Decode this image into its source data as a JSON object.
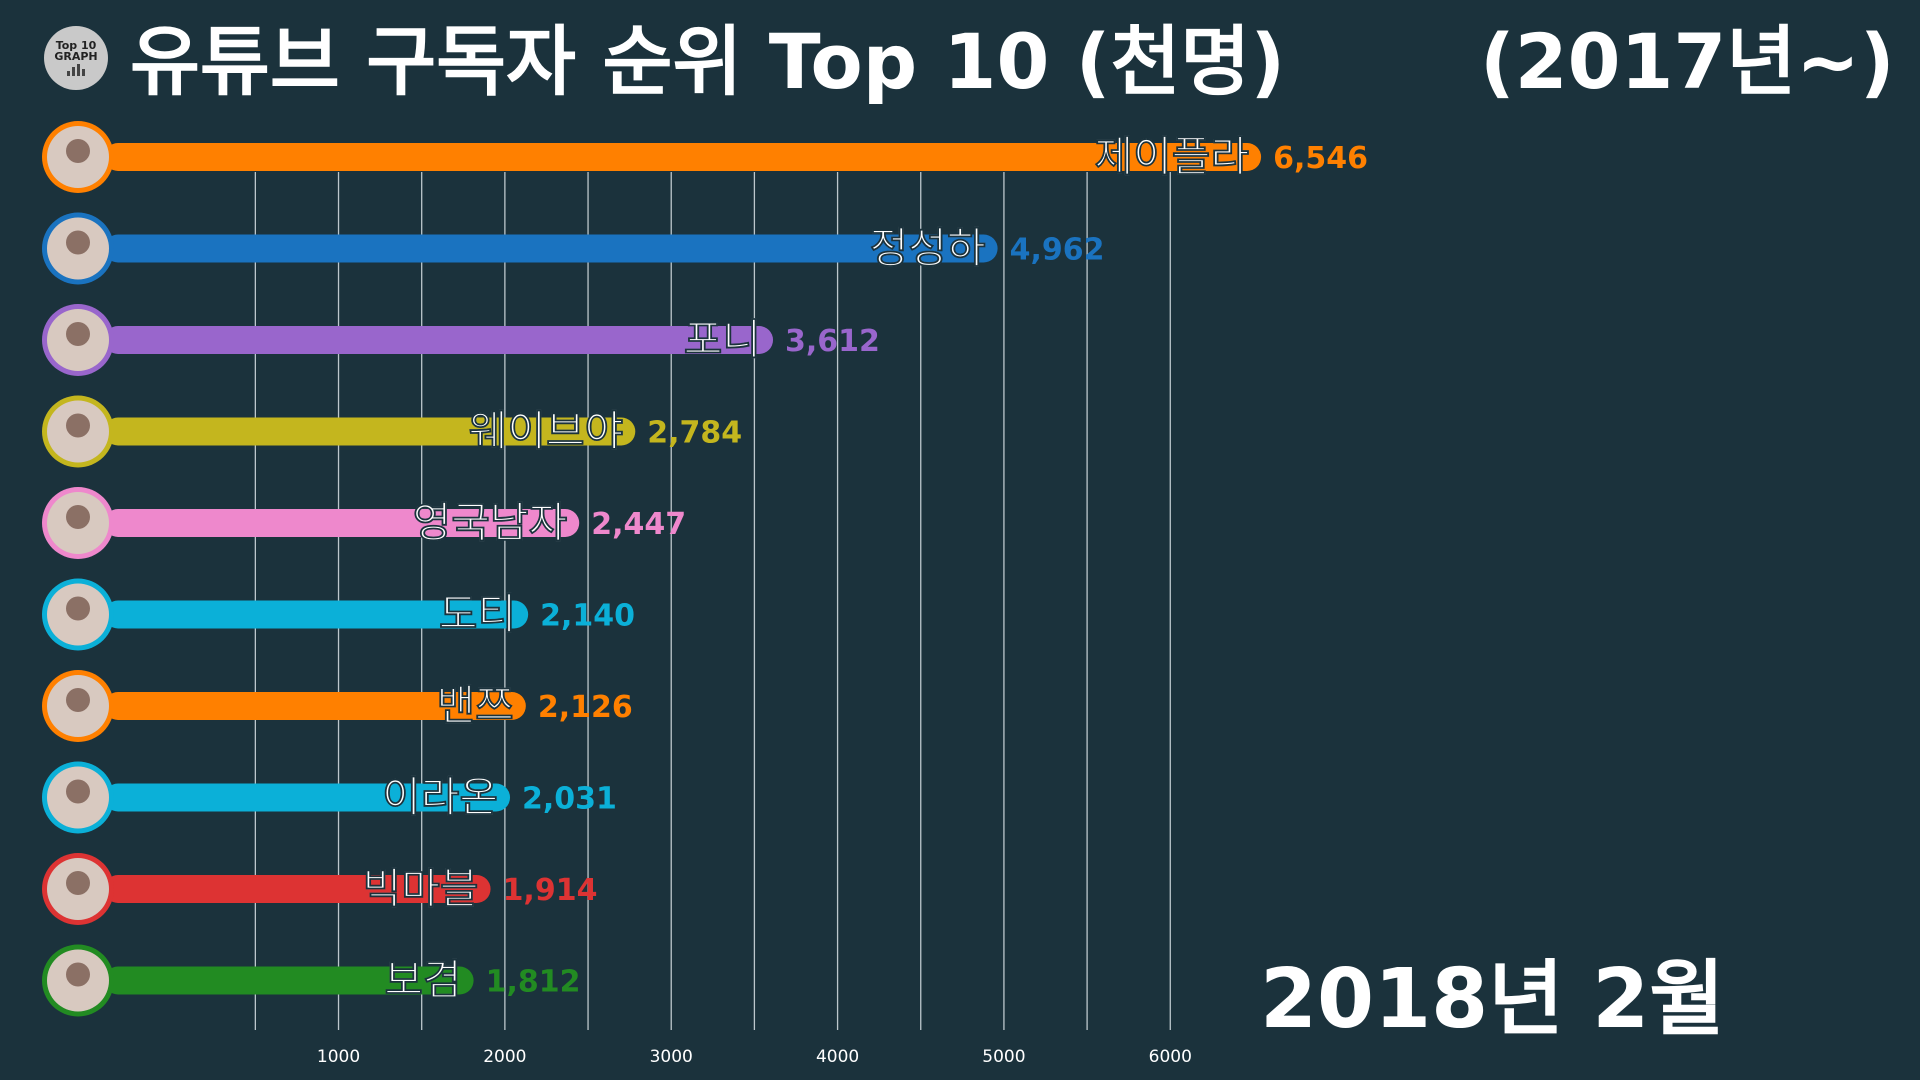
{
  "header": {
    "logo_line1": "Top 10",
    "logo_line2": "GRAPH",
    "title": "유튜브 구독자 순위 Top 10 (천명)",
    "subtitle": "(2017년~)",
    "period": "2018년 2월"
  },
  "chart_data": {
    "type": "bar",
    "orientation": "horizontal",
    "title": "유튜브 구독자 순위 Top 10 (천명)",
    "categories": [
      "제이플라",
      "정성하",
      "포니",
      "웨이브야",
      "영국남자",
      "도티",
      "밴쯔",
      "이라온",
      "빅마블",
      "보겸"
    ],
    "values": [
      6546,
      4962,
      3612,
      2784,
      2447,
      2140,
      2126,
      2031,
      1914,
      1812
    ],
    "value_labels": [
      "6,546",
      "4,962",
      "3,612",
      "2,784",
      "2,447",
      "2,140",
      "2,126",
      "2,031",
      "1,914",
      "1,812"
    ],
    "colors": [
      "#ff8000",
      "#1a73c0",
      "#9966cc",
      "#c4b61e",
      "#ee88cc",
      "#0bb0d8",
      "#ff8000",
      "#0bb0d8",
      "#dd3333",
      "#228b22"
    ],
    "x_ticks": [
      1000,
      2000,
      3000,
      4000,
      5000,
      6000
    ],
    "xlim": [
      0,
      6800
    ],
    "grid": true,
    "legend": "none",
    "xlabel": "",
    "ylabel": ""
  }
}
